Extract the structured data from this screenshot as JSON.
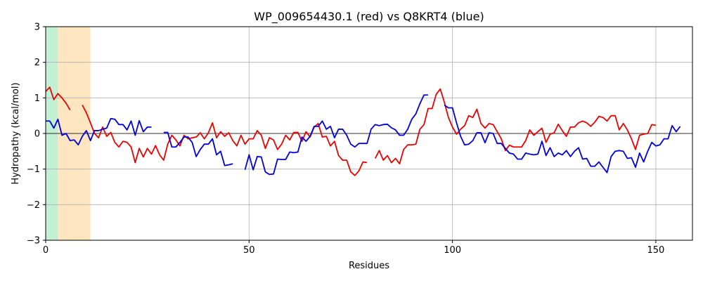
{
  "chart_data": {
    "type": "line",
    "title": "WP_009654430.1 (red) vs Q8KRT4 (blue)",
    "xlabel": "Residues",
    "ylabel": "Hydropathy (kcal/mol)",
    "xlim": [
      0,
      159
    ],
    "ylim": [
      -3,
      3
    ],
    "xticks": [
      0,
      50,
      100,
      150
    ],
    "yticks": [
      -3,
      -2,
      -1,
      0,
      1,
      2,
      3
    ],
    "grid": true,
    "zero_line": true,
    "regions": [
      {
        "x0": 0,
        "x1": 3,
        "color": "#c3f0d4"
      },
      {
        "x0": 3,
        "x1": 11,
        "color": "#fde6c0"
      }
    ],
    "series": [
      {
        "color": "#ee0000",
        "points": [
          [
            0,
            1.18
          ],
          [
            1,
            1.3
          ],
          [
            2,
            0.95
          ],
          [
            3,
            1.12
          ],
          [
            4,
            1.0
          ],
          [
            5,
            0.85
          ],
          [
            6,
            0.66
          ],
          [
            7,
            null
          ],
          [
            8,
            null
          ],
          [
            9,
            0.8
          ],
          [
            10,
            0.58
          ],
          [
            11,
            0.3
          ],
          [
            12,
            0.0
          ],
          [
            13,
            -0.12
          ],
          [
            14,
            0.18
          ],
          [
            15,
            -0.08
          ],
          [
            16,
            0.03
          ],
          [
            17,
            -0.25
          ],
          [
            18,
            -0.38
          ],
          [
            19,
            -0.22
          ],
          [
            20,
            -0.25
          ],
          [
            21,
            -0.38
          ],
          [
            22,
            -0.82
          ],
          [
            23,
            -0.42
          ],
          [
            24,
            -0.66
          ],
          [
            25,
            -0.42
          ],
          [
            26,
            -0.58
          ],
          [
            27,
            -0.34
          ],
          [
            28,
            -0.6
          ],
          [
            29,
            -0.75
          ],
          [
            30,
            -0.3
          ],
          [
            31,
            -0.05
          ],
          [
            32,
            -0.18
          ],
          [
            33,
            -0.35
          ],
          [
            34,
            -0.05
          ],
          [
            35,
            -0.15
          ],
          [
            36,
            -0.12
          ],
          [
            37,
            -0.1
          ],
          [
            38,
            0.02
          ],
          [
            39,
            -0.15
          ],
          [
            40,
            0.02
          ],
          [
            41,
            0.3
          ],
          [
            42,
            -0.12
          ],
          [
            43,
            0.05
          ],
          [
            44,
            -0.08
          ],
          [
            45,
            0.02
          ],
          [
            46,
            -0.2
          ],
          [
            47,
            -0.35
          ],
          [
            48,
            -0.05
          ],
          [
            49,
            -0.3
          ],
          [
            50,
            -0.15
          ],
          [
            51,
            -0.15
          ],
          [
            52,
            0.08
          ],
          [
            53,
            -0.05
          ],
          [
            54,
            -0.42
          ],
          [
            55,
            -0.12
          ],
          [
            56,
            -0.18
          ],
          [
            57,
            -0.45
          ],
          [
            58,
            -0.3
          ],
          [
            59,
            -0.05
          ],
          [
            60,
            -0.18
          ],
          [
            61,
            0.03
          ],
          [
            62,
            0.03
          ],
          [
            63,
            -0.22
          ],
          [
            64,
            0.05
          ],
          [
            65,
            -0.1
          ],
          [
            66,
            0.18
          ],
          [
            67,
            0.28
          ],
          [
            68,
            -0.1
          ],
          [
            69,
            -0.08
          ],
          [
            70,
            -0.35
          ],
          [
            71,
            -0.22
          ],
          [
            72,
            -0.62
          ],
          [
            73,
            -0.75
          ],
          [
            74,
            -0.75
          ],
          [
            75,
            -1.08
          ],
          [
            76,
            -1.18
          ],
          [
            77,
            -1.05
          ],
          [
            78,
            -0.8
          ],
          [
            79,
            -0.82
          ],
          [
            80,
            null
          ],
          [
            81,
            -0.7
          ],
          [
            82,
            -0.48
          ],
          [
            83,
            -0.75
          ],
          [
            84,
            -0.62
          ],
          [
            85,
            -0.82
          ],
          [
            86,
            -0.7
          ],
          [
            87,
            -0.85
          ],
          [
            88,
            -0.45
          ],
          [
            89,
            -0.32
          ],
          [
            90,
            -0.32
          ],
          [
            91,
            -0.3
          ],
          [
            92,
            0.12
          ],
          [
            93,
            0.25
          ],
          [
            94,
            0.7
          ],
          [
            95,
            0.7
          ],
          [
            96,
            1.1
          ],
          [
            97,
            1.25
          ],
          [
            98,
            0.88
          ],
          [
            99,
            0.45
          ],
          [
            100,
            0.18
          ],
          [
            101,
            -0.02
          ],
          [
            102,
            0.12
          ],
          [
            103,
            0.22
          ],
          [
            104,
            0.5
          ],
          [
            105,
            0.45
          ],
          [
            106,
            0.68
          ],
          [
            107,
            0.28
          ],
          [
            108,
            0.15
          ],
          [
            109,
            0.28
          ],
          [
            110,
            0.25
          ],
          [
            111,
            0.05
          ],
          [
            112,
            -0.15
          ],
          [
            113,
            -0.48
          ],
          [
            114,
            -0.33
          ],
          [
            115,
            -0.38
          ],
          [
            116,
            -0.38
          ],
          [
            117,
            -0.38
          ],
          [
            118,
            -0.2
          ],
          [
            119,
            0.1
          ],
          [
            120,
            -0.05
          ],
          [
            121,
            0.05
          ],
          [
            122,
            0.15
          ],
          [
            123,
            -0.25
          ],
          [
            124,
            -0.02
          ],
          [
            125,
            0.02
          ],
          [
            126,
            0.26
          ],
          [
            127,
            0.08
          ],
          [
            128,
            -0.08
          ],
          [
            129,
            0.18
          ],
          [
            130,
            0.18
          ],
          [
            131,
            0.3
          ],
          [
            132,
            0.35
          ],
          [
            133,
            0.3
          ],
          [
            134,
            0.2
          ],
          [
            135,
            0.32
          ],
          [
            136,
            0.48
          ],
          [
            137,
            0.45
          ],
          [
            138,
            0.35
          ],
          [
            139,
            0.5
          ],
          [
            140,
            0.5
          ],
          [
            141,
            0.1
          ],
          [
            142,
            0.28
          ],
          [
            143,
            0.1
          ],
          [
            144,
            -0.15
          ],
          [
            145,
            -0.45
          ],
          [
            146,
            -0.05
          ],
          [
            147,
            -0.02
          ],
          [
            148,
            0.0
          ],
          [
            149,
            0.25
          ],
          [
            150,
            0.23
          ]
        ]
      },
      {
        "color": "#0000dd",
        "points": [
          [
            0,
            0.35
          ],
          [
            1,
            0.35
          ],
          [
            2,
            0.15
          ],
          [
            3,
            0.4
          ],
          [
            4,
            -0.05
          ],
          [
            5,
            0.0
          ],
          [
            6,
            -0.2
          ],
          [
            7,
            -0.18
          ],
          [
            8,
            -0.32
          ],
          [
            9,
            -0.08
          ],
          [
            10,
            0.08
          ],
          [
            11,
            -0.2
          ],
          [
            12,
            0.08
          ],
          [
            13,
            0.08
          ],
          [
            14,
            0.12
          ],
          [
            15,
            0.15
          ],
          [
            16,
            0.42
          ],
          [
            17,
            0.4
          ],
          [
            18,
            0.25
          ],
          [
            19,
            0.25
          ],
          [
            20,
            0.1
          ],
          [
            21,
            0.35
          ],
          [
            22,
            -0.05
          ],
          [
            23,
            0.36
          ],
          [
            24,
            0.05
          ],
          [
            25,
            0.18
          ],
          [
            26,
            0.18
          ],
          [
            27,
            null
          ],
          [
            28,
            null
          ],
          [
            29,
            0.03
          ],
          [
            30,
            0.03
          ],
          [
            31,
            -0.38
          ],
          [
            32,
            -0.38
          ],
          [
            33,
            -0.25
          ],
          [
            34,
            -0.1
          ],
          [
            35,
            -0.1
          ],
          [
            36,
            -0.25
          ],
          [
            37,
            -0.65
          ],
          [
            38,
            -0.45
          ],
          [
            39,
            -0.3
          ],
          [
            40,
            -0.3
          ],
          [
            41,
            -0.15
          ],
          [
            42,
            -0.6
          ],
          [
            43,
            -0.5
          ],
          [
            44,
            -0.9
          ],
          [
            45,
            -0.88
          ],
          [
            46,
            -0.85
          ],
          [
            47,
            null
          ],
          [
            48,
            null
          ],
          [
            49,
            -1.02
          ],
          [
            50,
            -0.6
          ],
          [
            51,
            -1.02
          ],
          [
            52,
            -0.65
          ],
          [
            53,
            -0.66
          ],
          [
            54,
            -1.08
          ],
          [
            55,
            -1.15
          ],
          [
            56,
            -1.14
          ],
          [
            57,
            -0.72
          ],
          [
            58,
            -0.73
          ],
          [
            59,
            -0.73
          ],
          [
            60,
            -0.52
          ],
          [
            61,
            -0.54
          ],
          [
            62,
            -0.52
          ],
          [
            63,
            -0.1
          ],
          [
            64,
            -0.22
          ],
          [
            65,
            -0.08
          ],
          [
            66,
            0.2
          ],
          [
            67,
            0.2
          ],
          [
            68,
            0.35
          ],
          [
            69,
            0.12
          ],
          [
            70,
            0.2
          ],
          [
            71,
            -0.12
          ],
          [
            72,
            0.12
          ],
          [
            73,
            0.12
          ],
          [
            74,
            -0.05
          ],
          [
            75,
            -0.3
          ],
          [
            76,
            -0.38
          ],
          [
            77,
            -0.28
          ],
          [
            78,
            -0.28
          ],
          [
            79,
            -0.28
          ],
          [
            80,
            0.12
          ],
          [
            81,
            0.25
          ],
          [
            82,
            0.22
          ],
          [
            83,
            0.25
          ],
          [
            84,
            0.26
          ],
          [
            85,
            0.16
          ],
          [
            86,
            0.1
          ],
          [
            87,
            -0.05
          ],
          [
            88,
            -0.05
          ],
          [
            89,
            0.12
          ],
          [
            90,
            0.4
          ],
          [
            91,
            0.55
          ],
          [
            92,
            0.84
          ],
          [
            93,
            1.08
          ],
          [
            94,
            1.08
          ],
          [
            95,
            null
          ],
          [
            96,
            null
          ],
          [
            97,
            null
          ],
          [
            98,
            0.8
          ],
          [
            99,
            0.72
          ],
          [
            100,
            0.72
          ],
          [
            101,
            0.3
          ],
          [
            102,
            -0.08
          ],
          [
            103,
            -0.32
          ],
          [
            104,
            -0.3
          ],
          [
            105,
            -0.2
          ],
          [
            106,
            0.02
          ],
          [
            107,
            0.02
          ],
          [
            108,
            -0.26
          ],
          [
            109,
            0.02
          ],
          [
            110,
            0.0
          ],
          [
            111,
            -0.28
          ],
          [
            112,
            -0.28
          ],
          [
            113,
            -0.42
          ],
          [
            114,
            -0.55
          ],
          [
            115,
            -0.58
          ],
          [
            116,
            -0.72
          ],
          [
            117,
            -0.72
          ],
          [
            118,
            -0.55
          ],
          [
            119,
            -0.58
          ],
          [
            120,
            -0.6
          ],
          [
            121,
            -0.58
          ],
          [
            122,
            -0.22
          ],
          [
            123,
            -0.62
          ],
          [
            124,
            -0.4
          ],
          [
            125,
            -0.65
          ],
          [
            126,
            -0.55
          ],
          [
            127,
            -0.6
          ],
          [
            128,
            -0.48
          ],
          [
            129,
            -0.65
          ],
          [
            130,
            -0.5
          ],
          [
            131,
            -0.4
          ],
          [
            132,
            -0.72
          ],
          [
            133,
            -0.7
          ],
          [
            134,
            -0.92
          ],
          [
            135,
            -0.92
          ],
          [
            136,
            -0.8
          ],
          [
            137,
            -0.95
          ],
          [
            138,
            -1.1
          ],
          [
            139,
            -0.65
          ],
          [
            140,
            -0.5
          ],
          [
            141,
            -0.48
          ],
          [
            142,
            -0.5
          ],
          [
            143,
            -0.7
          ],
          [
            144,
            -0.68
          ],
          [
            145,
            -0.95
          ],
          [
            146,
            -0.55
          ],
          [
            147,
            -0.8
          ],
          [
            148,
            -0.5
          ],
          [
            149,
            -0.25
          ],
          [
            150,
            -0.35
          ],
          [
            151,
            -0.32
          ],
          [
            152,
            -0.15
          ],
          [
            153,
            -0.15
          ],
          [
            154,
            0.22
          ],
          [
            155,
            0.05
          ],
          [
            156,
            0.2
          ]
        ]
      }
    ]
  }
}
